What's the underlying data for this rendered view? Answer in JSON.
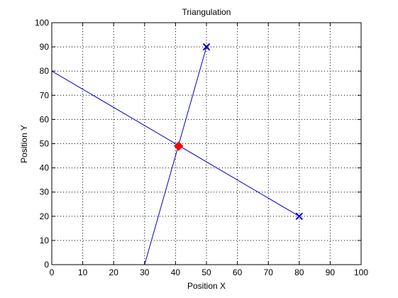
{
  "chart_data": {
    "type": "line",
    "title": "Triangulation",
    "xlabel": "Position X",
    "ylabel": "Position Y",
    "xlim": [
      0,
      100
    ],
    "ylim": [
      0,
      100
    ],
    "xticks": [
      0,
      10,
      20,
      30,
      40,
      50,
      60,
      70,
      80,
      90,
      100
    ],
    "yticks": [
      0,
      10,
      20,
      30,
      40,
      50,
      60,
      70,
      80,
      90,
      100
    ],
    "grid": true,
    "grid_style": "dotted",
    "series": [
      {
        "x": [
          30,
          50
        ],
        "y": [
          0,
          90
        ],
        "color": "#0000cc"
      },
      {
        "x": [
          0,
          80
        ],
        "y": [
          80,
          20
        ],
        "color": "#0000cc"
      }
    ],
    "markers": [
      {
        "x": 50,
        "y": 90,
        "symbol": "x",
        "color": "#0000cc"
      },
      {
        "x": 80,
        "y": 20,
        "symbol": "x",
        "color": "#0000cc"
      },
      {
        "x": 41,
        "y": 49,
        "symbol": "diamond",
        "color": "#ff0000"
      }
    ]
  }
}
